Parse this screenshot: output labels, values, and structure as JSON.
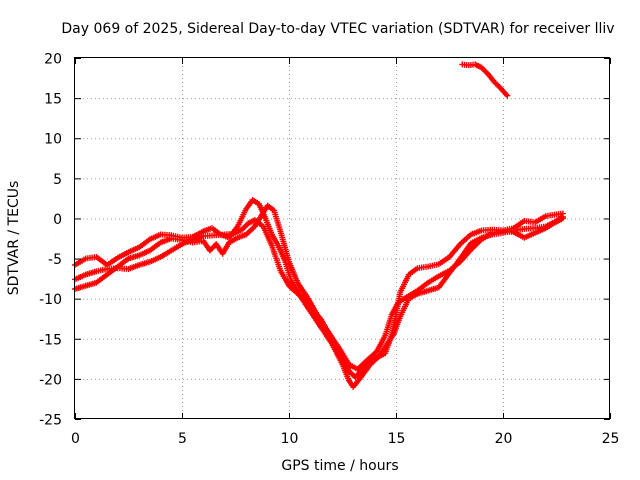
{
  "chart_data": {
    "type": "scatter",
    "title": "Day 069 of 2025, Sidereal Day-to-day VTEC variation (SDTVAR) for receiver lliv",
    "xlabel": "GPS time / hours",
    "ylabel": "SDTVAR / TECUs",
    "xlim": [
      0,
      25
    ],
    "ylim": [
      -25,
      20
    ],
    "x_ticks": [
      0,
      5,
      10,
      15,
      20,
      25
    ],
    "y_ticks": [
      -25,
      -20,
      -15,
      -10,
      -5,
      0,
      5,
      10,
      15,
      20
    ],
    "x_tick_labels": [
      "0",
      "5",
      "10",
      "15",
      "20",
      "25"
    ],
    "y_tick_labels": [
      "-25",
      "-20",
      "-15",
      "-10",
      "-5",
      "0",
      "5",
      "10",
      "15",
      "20"
    ],
    "grid": true,
    "marker": "plus",
    "series": [
      {
        "name": "track-a",
        "color": "#ff0000",
        "points": [
          [
            0.0,
            -5.8
          ],
          [
            0.5,
            -5.0
          ],
          [
            1.0,
            -4.8
          ],
          [
            1.5,
            -5.8
          ],
          [
            2.0,
            -4.9
          ],
          [
            2.5,
            -4.2
          ],
          [
            3.0,
            -3.6
          ],
          [
            3.5,
            -2.6
          ],
          [
            4.0,
            -2.0
          ],
          [
            4.5,
            -2.1
          ],
          [
            5.0,
            -2.4
          ],
          [
            5.5,
            -2.3
          ],
          [
            6.0,
            -1.6
          ],
          [
            6.4,
            -1.2
          ],
          [
            6.8,
            -2.0
          ],
          [
            7.2,
            -2.4
          ],
          [
            7.6,
            -1.0
          ],
          [
            8.0,
            1.2
          ],
          [
            8.3,
            2.3
          ],
          [
            8.6,
            1.8
          ],
          [
            8.9,
            0.0
          ],
          [
            9.2,
            -2.0
          ],
          [
            9.5,
            -3.4
          ],
          [
            9.8,
            -5.2
          ],
          [
            10.1,
            -7.8
          ],
          [
            10.5,
            -9.5
          ],
          [
            11.0,
            -11.0
          ],
          [
            11.5,
            -12.6
          ],
          [
            12.0,
            -15.0
          ],
          [
            12.5,
            -17.2
          ],
          [
            12.8,
            -19.0
          ],
          [
            13.1,
            -19.8
          ],
          [
            13.5,
            -18.6
          ],
          [
            14.0,
            -17.5
          ],
          [
            14.5,
            -16.8
          ],
          [
            14.8,
            -14.5
          ],
          [
            15.0,
            -12.0
          ],
          [
            15.2,
            -9.2
          ],
          [
            15.6,
            -7.0
          ],
          [
            16.0,
            -6.2
          ],
          [
            16.5,
            -6.0
          ],
          [
            17.0,
            -5.7
          ],
          [
            17.5,
            -4.8
          ],
          [
            18.0,
            -3.2
          ],
          [
            18.5,
            -2.0
          ],
          [
            19.0,
            -1.5
          ],
          [
            19.5,
            -1.4
          ],
          [
            20.0,
            -1.5
          ],
          [
            20.5,
            -1.2
          ],
          [
            21.0,
            -0.3
          ],
          [
            21.5,
            -0.5
          ],
          [
            22.0,
            0.3
          ],
          [
            22.5,
            0.5
          ],
          [
            22.8,
            0.6
          ]
        ]
      },
      {
        "name": "track-b",
        "color": "#ff0000",
        "points": [
          [
            0.0,
            -7.6
          ],
          [
            0.5,
            -7.0
          ],
          [
            1.0,
            -6.6
          ],
          [
            1.5,
            -6.3
          ],
          [
            2.0,
            -6.2
          ],
          [
            2.5,
            -6.3
          ],
          [
            3.0,
            -5.8
          ],
          [
            3.5,
            -5.4
          ],
          [
            4.0,
            -4.8
          ],
          [
            4.5,
            -4.0
          ],
          [
            5.0,
            -3.2
          ],
          [
            5.5,
            -2.6
          ],
          [
            6.0,
            -2.2
          ],
          [
            6.5,
            -2.1
          ],
          [
            7.0,
            -2.0
          ],
          [
            7.4,
            -1.9
          ],
          [
            7.8,
            -1.4
          ],
          [
            8.1,
            -0.6
          ],
          [
            8.4,
            -0.2
          ],
          [
            8.8,
            -1.0
          ],
          [
            9.2,
            -3.4
          ],
          [
            9.6,
            -6.5
          ],
          [
            10.0,
            -8.4
          ],
          [
            10.5,
            -9.6
          ],
          [
            11.0,
            -11.6
          ],
          [
            11.5,
            -13.6
          ],
          [
            12.0,
            -15.6
          ],
          [
            12.5,
            -18.2
          ],
          [
            12.8,
            -20.2
          ],
          [
            13.0,
            -21.0
          ],
          [
            13.3,
            -20.0
          ],
          [
            13.8,
            -18.2
          ],
          [
            14.2,
            -17.2
          ],
          [
            14.5,
            -16.0
          ],
          [
            14.9,
            -14.4
          ],
          [
            15.2,
            -12.2
          ],
          [
            15.6,
            -10.0
          ],
          [
            16.0,
            -9.4
          ],
          [
            16.5,
            -9.0
          ],
          [
            17.0,
            -8.6
          ],
          [
            17.5,
            -6.8
          ],
          [
            18.0,
            -5.0
          ],
          [
            18.5,
            -3.1
          ],
          [
            19.0,
            -2.4
          ],
          [
            19.5,
            -2.0
          ],
          [
            20.0,
            -1.8
          ],
          [
            20.5,
            -1.5
          ],
          [
            21.0,
            -1.3
          ],
          [
            21.5,
            -1.2
          ],
          [
            22.0,
            -1.0
          ],
          [
            22.5,
            -0.3
          ],
          [
            22.8,
            0.2
          ]
        ]
      },
      {
        "name": "track-c",
        "color": "#ff0000",
        "points": [
          [
            0.0,
            -8.8
          ],
          [
            0.5,
            -8.4
          ],
          [
            1.0,
            -8.0
          ],
          [
            1.5,
            -7.0
          ],
          [
            2.0,
            -6.0
          ],
          [
            2.5,
            -5.0
          ],
          [
            3.0,
            -4.6
          ],
          [
            3.5,
            -4.0
          ],
          [
            4.0,
            -3.0
          ],
          [
            4.5,
            -2.5
          ],
          [
            5.0,
            -2.7
          ],
          [
            5.5,
            -3.0
          ],
          [
            6.0,
            -2.8
          ],
          [
            6.3,
            -4.0
          ],
          [
            6.6,
            -3.2
          ],
          [
            6.9,
            -4.4
          ],
          [
            7.2,
            -3.0
          ],
          [
            7.6,
            -2.4
          ],
          [
            8.0,
            -2.0
          ],
          [
            8.4,
            -1.0
          ],
          [
            8.7,
            0.3
          ],
          [
            9.0,
            1.6
          ],
          [
            9.3,
            1.0
          ],
          [
            9.6,
            -1.6
          ],
          [
            10.0,
            -5.4
          ],
          [
            10.4,
            -8.0
          ],
          [
            10.9,
            -10.0
          ],
          [
            11.4,
            -12.4
          ],
          [
            11.9,
            -14.4
          ],
          [
            12.4,
            -16.4
          ],
          [
            12.8,
            -18.2
          ],
          [
            13.2,
            -18.8
          ],
          [
            13.6,
            -17.8
          ],
          [
            14.1,
            -16.6
          ],
          [
            14.5,
            -14.6
          ],
          [
            14.8,
            -12.0
          ],
          [
            15.1,
            -10.5
          ],
          [
            15.5,
            -9.8
          ],
          [
            16.0,
            -9.0
          ],
          [
            16.5,
            -8.0
          ],
          [
            17.0,
            -7.2
          ],
          [
            17.5,
            -6.5
          ],
          [
            18.0,
            -5.4
          ],
          [
            18.5,
            -3.9
          ],
          [
            19.0,
            -2.6
          ],
          [
            19.5,
            -1.8
          ],
          [
            20.0,
            -1.6
          ],
          [
            20.5,
            -1.7
          ],
          [
            21.0,
            -2.4
          ],
          [
            21.5,
            -1.8
          ],
          [
            22.0,
            -1.2
          ],
          [
            22.5,
            -0.4
          ],
          [
            22.8,
            0.0
          ]
        ]
      },
      {
        "name": "track-d",
        "color": "#ff0000",
        "points": [
          [
            18.1,
            19.2
          ],
          [
            18.4,
            19.1
          ],
          [
            18.7,
            19.2
          ],
          [
            19.0,
            18.8
          ],
          [
            19.3,
            18.0
          ],
          [
            19.6,
            17.0
          ],
          [
            19.9,
            16.2
          ],
          [
            20.2,
            15.3
          ]
        ]
      }
    ]
  }
}
